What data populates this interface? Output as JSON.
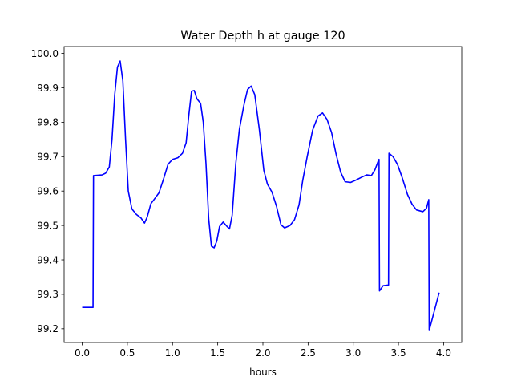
{
  "chart_data": {
    "type": "line",
    "title": "Water Depth h at gauge 120",
    "xlabel": "hours",
    "ylabel": "",
    "xlim": [
      -0.2,
      4.2
    ],
    "ylim": [
      99.16,
      100.02
    ],
    "xticks": [
      0.0,
      0.5,
      1.0,
      1.5,
      2.0,
      2.5,
      3.0,
      3.5,
      4.0
    ],
    "xtick_labels": [
      "0.0",
      "0.5",
      "1.0",
      "1.5",
      "2.0",
      "2.5",
      "3.0",
      "3.5",
      "4.0"
    ],
    "yticks": [
      99.2,
      99.3,
      99.4,
      99.5,
      99.6,
      99.7,
      99.8,
      99.9,
      100.0
    ],
    "ytick_labels": [
      "99.2",
      "99.3",
      "99.4",
      "99.5",
      "99.6",
      "99.7",
      "99.8",
      "99.9",
      "100.0"
    ],
    "grid": false,
    "series": [
      {
        "color": "#0000ff",
        "points": [
          [
            0.0,
            99.262
          ],
          [
            0.12,
            99.262
          ],
          [
            0.125,
            99.645
          ],
          [
            0.22,
            99.647
          ],
          [
            0.26,
            99.652
          ],
          [
            0.3,
            99.67
          ],
          [
            0.33,
            99.75
          ],
          [
            0.36,
            99.88
          ],
          [
            0.39,
            99.96
          ],
          [
            0.42,
            99.978
          ],
          [
            0.45,
            99.92
          ],
          [
            0.48,
            99.75
          ],
          [
            0.51,
            99.6
          ],
          [
            0.55,
            99.548
          ],
          [
            0.6,
            99.532
          ],
          [
            0.65,
            99.522
          ],
          [
            0.69,
            99.507
          ],
          [
            0.72,
            99.525
          ],
          [
            0.76,
            99.563
          ],
          [
            0.8,
            99.577
          ],
          [
            0.85,
            99.595
          ],
          [
            0.9,
            99.635
          ],
          [
            0.95,
            99.678
          ],
          [
            1.0,
            99.692
          ],
          [
            1.06,
            99.697
          ],
          [
            1.11,
            99.71
          ],
          [
            1.15,
            99.74
          ],
          [
            1.18,
            99.82
          ],
          [
            1.21,
            99.89
          ],
          [
            1.24,
            99.892
          ],
          [
            1.27,
            99.868
          ],
          [
            1.31,
            99.855
          ],
          [
            1.34,
            99.8
          ],
          [
            1.37,
            99.68
          ],
          [
            1.4,
            99.52
          ],
          [
            1.43,
            99.44
          ],
          [
            1.46,
            99.435
          ],
          [
            1.49,
            99.455
          ],
          [
            1.52,
            99.497
          ],
          [
            1.56,
            99.51
          ],
          [
            1.6,
            99.498
          ],
          [
            1.63,
            99.49
          ],
          [
            1.66,
            99.53
          ],
          [
            1.7,
            99.68
          ],
          [
            1.74,
            99.78
          ],
          [
            1.79,
            99.85
          ],
          [
            1.83,
            99.895
          ],
          [
            1.87,
            99.905
          ],
          [
            1.91,
            99.88
          ],
          [
            1.96,
            99.78
          ],
          [
            2.01,
            99.66
          ],
          [
            2.05,
            99.62
          ],
          [
            2.1,
            99.597
          ],
          [
            2.15,
            99.556
          ],
          [
            2.2,
            99.502
          ],
          [
            2.24,
            99.493
          ],
          [
            2.3,
            99.5
          ],
          [
            2.35,
            99.517
          ],
          [
            2.4,
            99.56
          ],
          [
            2.44,
            99.63
          ],
          [
            2.49,
            99.7
          ],
          [
            2.55,
            99.777
          ],
          [
            2.61,
            99.818
          ],
          [
            2.66,
            99.827
          ],
          [
            2.71,
            99.808
          ],
          [
            2.76,
            99.77
          ],
          [
            2.81,
            99.707
          ],
          [
            2.86,
            99.655
          ],
          [
            2.91,
            99.627
          ],
          [
            2.97,
            99.625
          ],
          [
            3.03,
            99.632
          ],
          [
            3.09,
            99.64
          ],
          [
            3.15,
            99.647
          ],
          [
            3.2,
            99.645
          ],
          [
            3.24,
            99.662
          ],
          [
            3.27,
            99.683
          ],
          [
            3.285,
            99.692
          ],
          [
            3.29,
            99.31
          ],
          [
            3.33,
            99.325
          ],
          [
            3.39,
            99.327
          ],
          [
            3.395,
            99.71
          ],
          [
            3.44,
            99.7
          ],
          [
            3.49,
            99.677
          ],
          [
            3.54,
            99.64
          ],
          [
            3.6,
            99.59
          ],
          [
            3.65,
            99.562
          ],
          [
            3.7,
            99.545
          ],
          [
            3.77,
            99.54
          ],
          [
            3.81,
            99.55
          ],
          [
            3.835,
            99.575
          ],
          [
            3.84,
            99.195
          ],
          [
            3.88,
            99.235
          ],
          [
            3.92,
            99.275
          ],
          [
            3.95,
            99.305
          ]
        ]
      }
    ]
  }
}
